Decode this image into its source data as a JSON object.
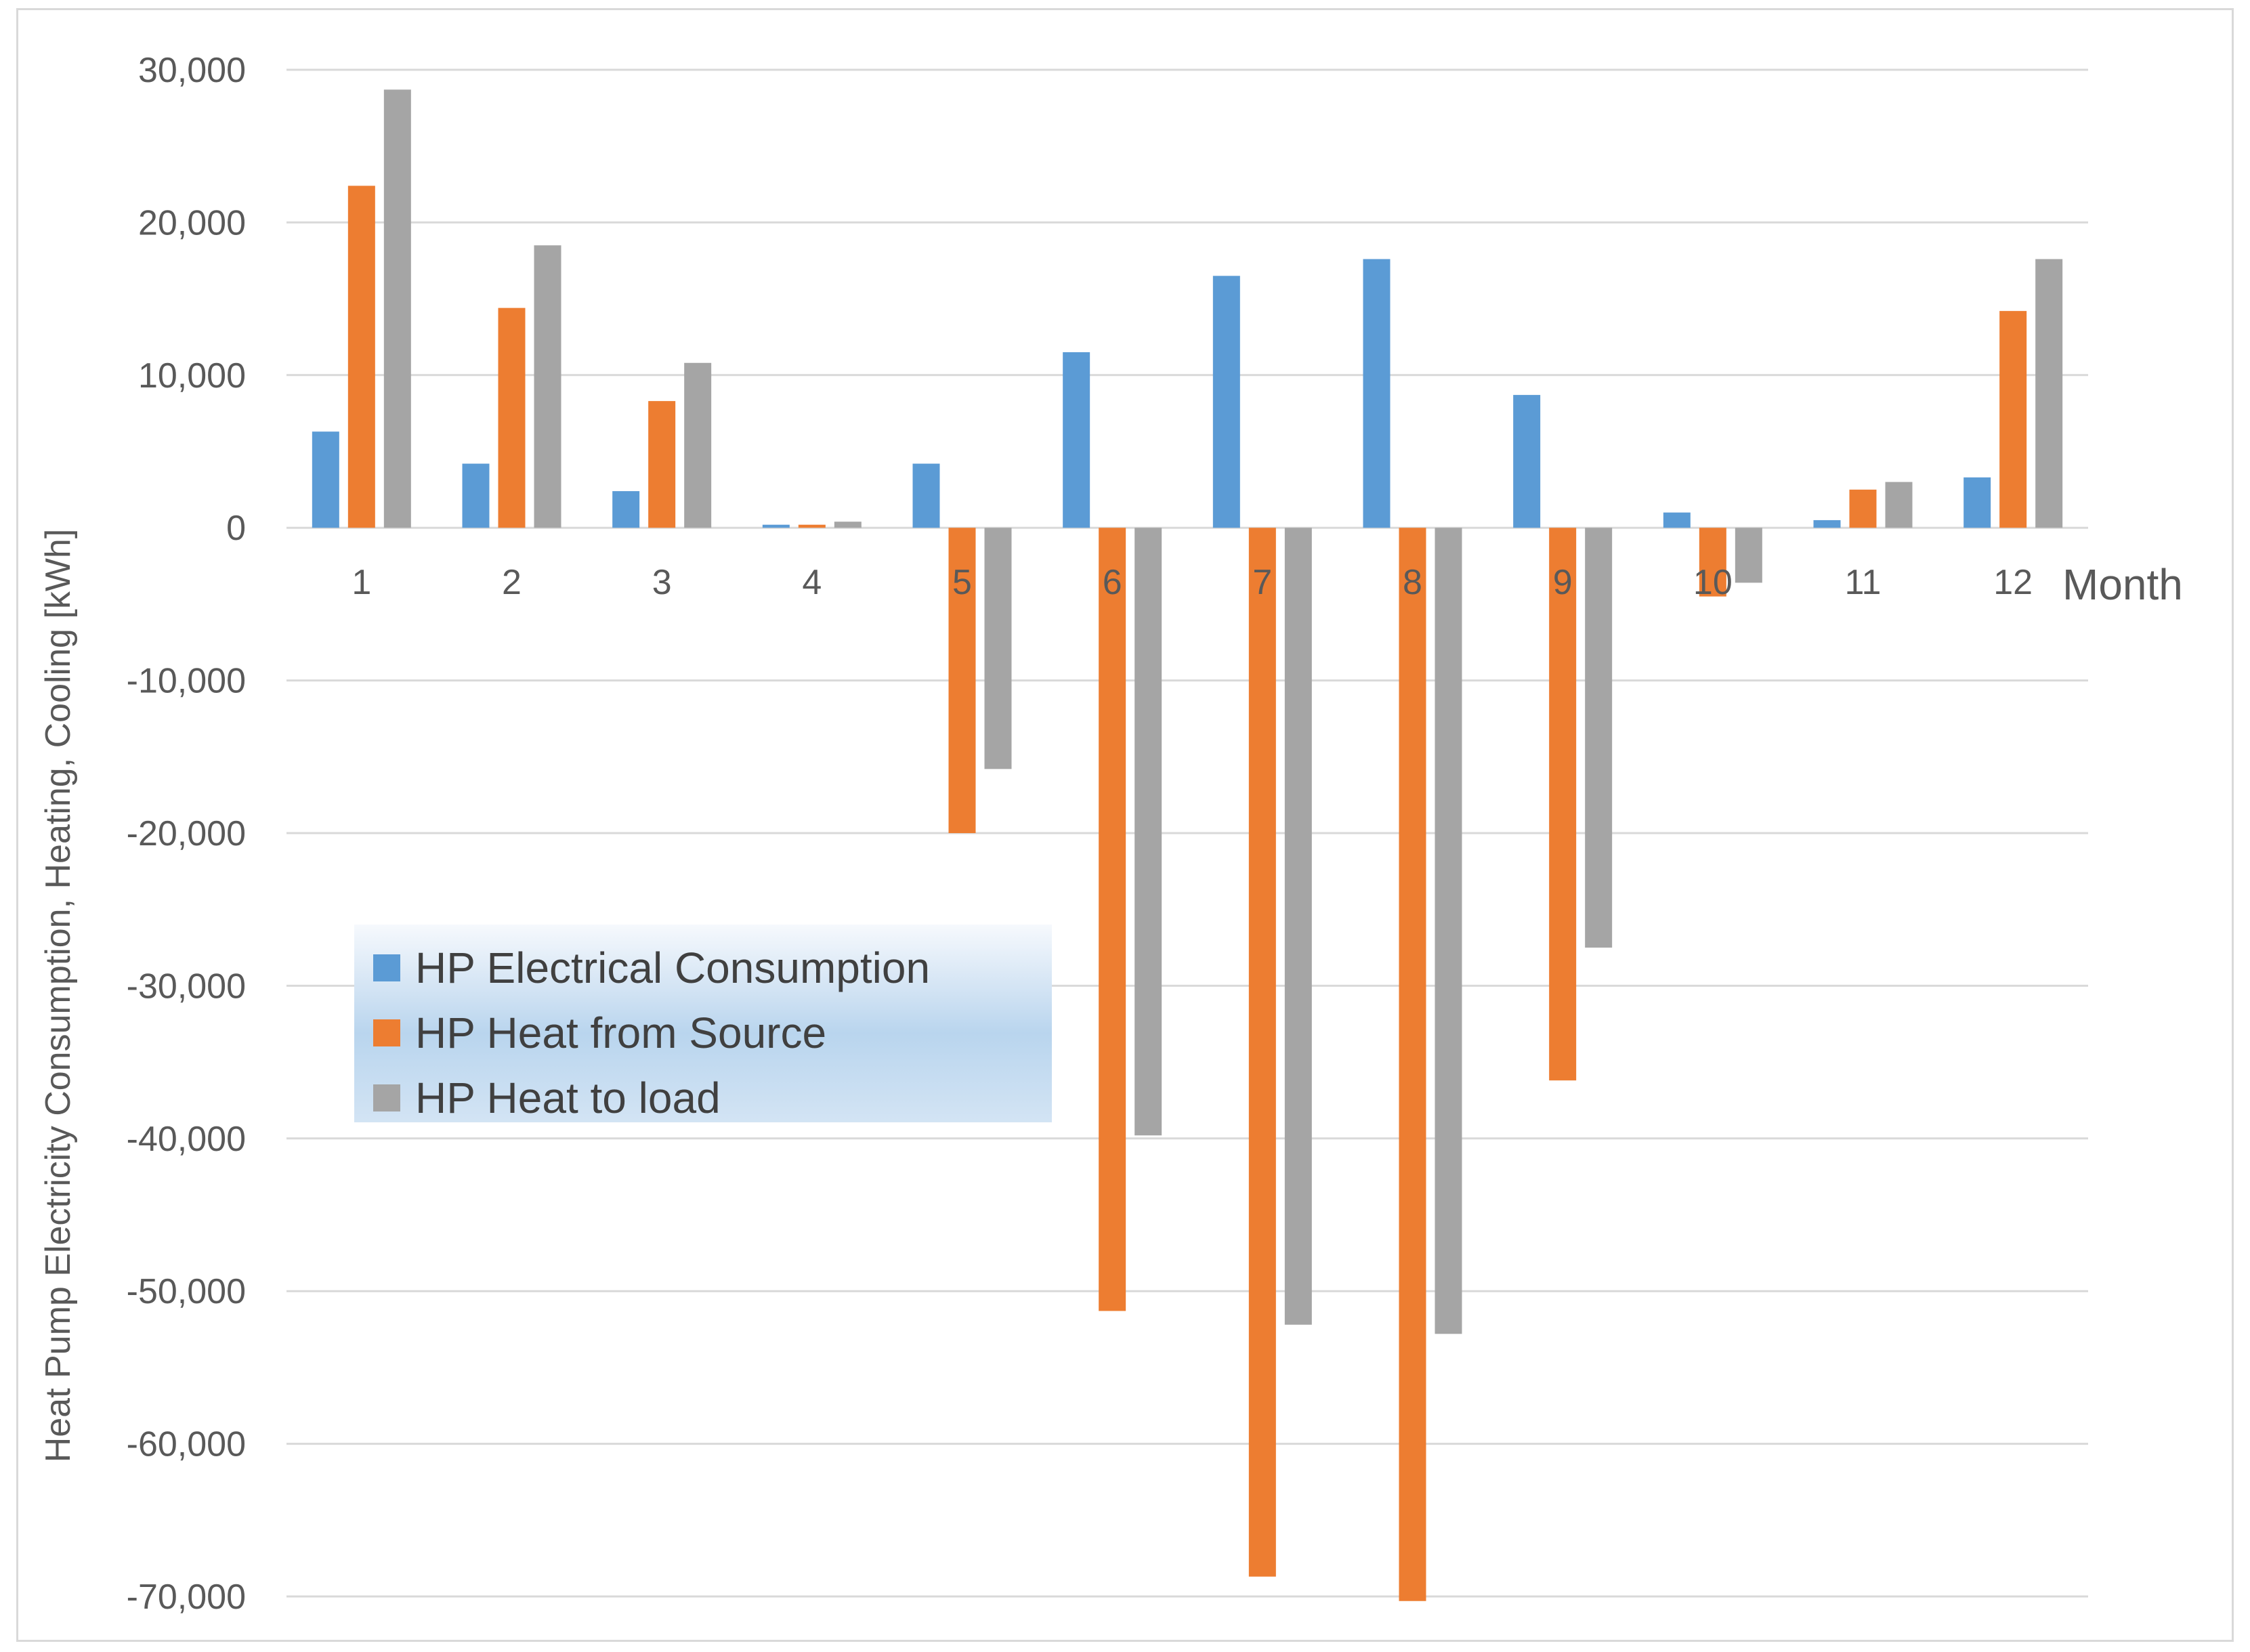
{
  "chart_data": {
    "type": "bar",
    "title": "",
    "xlabel": "Month",
    "ylabel": "Heat Pump Electricity Consumption, Heating, Cooling [kWh]",
    "categories": [
      "1",
      "2",
      "3",
      "4",
      "5",
      "6",
      "7",
      "8",
      "9",
      "10",
      "11",
      "12"
    ],
    "ylim": [
      -70000,
      30000
    ],
    "ytick_values": [
      30000,
      20000,
      10000,
      0,
      -10000,
      -20000,
      -30000,
      -40000,
      -50000,
      -60000,
      -70000
    ],
    "ytick_labels": [
      "30,000",
      "20,000",
      "10,000",
      "0",
      "-10,000",
      "-20,000",
      "-30,000",
      "-40,000",
      "-50,000",
      "-60,000",
      "-70,000"
    ],
    "grid": true,
    "legend_position": "lower-left",
    "series": [
      {
        "name": "HP Electrical Consumption",
        "color": "#5b9bd5",
        "values": [
          6300,
          4200,
          2400,
          200,
          4200,
          11500,
          16500,
          17600,
          8700,
          1000,
          500,
          3300
        ]
      },
      {
        "name": "HP Heat from Source",
        "color": "#ed7d31",
        "values": [
          22400,
          14400,
          8300,
          200,
          -20000,
          -51300,
          -68700,
          -70300,
          -36200,
          -4500,
          2500,
          14200
        ]
      },
      {
        "name": "HP Heat to load",
        "color": "#a5a5a5",
        "values": [
          28700,
          18500,
          10800,
          400,
          -15800,
          -39800,
          -52200,
          -52800,
          -27500,
          -3600,
          3000,
          17600
        ]
      }
    ]
  }
}
